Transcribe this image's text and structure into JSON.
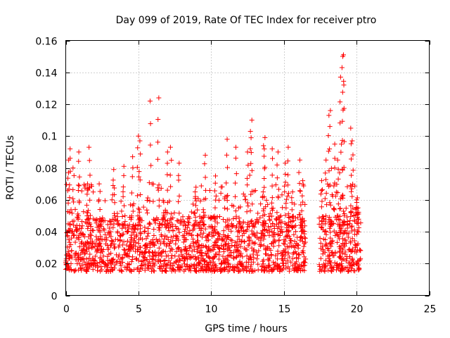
{
  "chart_data": {
    "type": "scatter",
    "title": "Day 099 of 2019, Rate Of TEC Index for receiver ptro",
    "xlabel": "GPS time / hours",
    "ylabel": "ROTI / TECUs",
    "xlim": [
      0,
      25
    ],
    "ylim": [
      0,
      0.16
    ],
    "x_ticks": [
      0,
      5,
      10,
      15,
      20,
      25
    ],
    "x_tick_labels": [
      "0",
      "5",
      "10",
      "15",
      "20",
      "25"
    ],
    "y_ticks": [
      0,
      0.02,
      0.04,
      0.06,
      0.08,
      0.1,
      0.12,
      0.14,
      0.16
    ],
    "y_tick_labels": [
      "0",
      "0.02",
      "0.04",
      "0.06",
      "0.08",
      "0.1",
      "0.12",
      "0.14",
      "0.16"
    ],
    "grid": true,
    "marker": "+",
    "series_color": "#ff0000",
    "series": [
      {
        "name": "ROTI",
        "data_segments": [
          {
            "x_start": 0.0,
            "x_end": 16.5,
            "typical_min": 0.015,
            "typical_max": 0.05
          },
          {
            "x_start": 17.4,
            "x_end": 20.3,
            "typical_min": 0.015,
            "typical_max": 0.05
          }
        ],
        "notable_points": [
          {
            "x": 0.2,
            "y": 0.085
          },
          {
            "x": 0.3,
            "y": 0.092
          },
          {
            "x": 0.5,
            "y": 0.08
          },
          {
            "x": 0.9,
            "y": 0.09
          },
          {
            "x": 1.5,
            "y": 0.07
          },
          {
            "x": 1.6,
            "y": 0.093
          },
          {
            "x": 2.3,
            "y": 0.07
          },
          {
            "x": 3.3,
            "y": 0.079
          },
          {
            "x": 4.0,
            "y": 0.081
          },
          {
            "x": 4.6,
            "y": 0.087
          },
          {
            "x": 5.0,
            "y": 0.1
          },
          {
            "x": 5.1,
            "y": 0.097
          },
          {
            "x": 5.8,
            "y": 0.122
          },
          {
            "x": 6.4,
            "y": 0.124
          },
          {
            "x": 7.0,
            "y": 0.09
          },
          {
            "x": 7.2,
            "y": 0.093
          },
          {
            "x": 7.8,
            "y": 0.083
          },
          {
            "x": 8.9,
            "y": 0.065
          },
          {
            "x": 9.6,
            "y": 0.088
          },
          {
            "x": 10.3,
            "y": 0.075
          },
          {
            "x": 11.1,
            "y": 0.098
          },
          {
            "x": 11.7,
            "y": 0.093
          },
          {
            "x": 12.5,
            "y": 0.09
          },
          {
            "x": 12.7,
            "y": 0.103
          },
          {
            "x": 12.8,
            "y": 0.11
          },
          {
            "x": 13.6,
            "y": 0.094
          },
          {
            "x": 13.7,
            "y": 0.099
          },
          {
            "x": 14.2,
            "y": 0.092
          },
          {
            "x": 14.6,
            "y": 0.09
          },
          {
            "x": 15.1,
            "y": 0.083
          },
          {
            "x": 15.3,
            "y": 0.093
          },
          {
            "x": 15.6,
            "y": 0.065
          },
          {
            "x": 16.1,
            "y": 0.085
          },
          {
            "x": 16.3,
            "y": 0.072
          },
          {
            "x": 17.6,
            "y": 0.072
          },
          {
            "x": 17.9,
            "y": 0.085
          },
          {
            "x": 18.1,
            "y": 0.113
          },
          {
            "x": 18.2,
            "y": 0.116
          },
          {
            "x": 18.5,
            "y": 0.095
          },
          {
            "x": 18.7,
            "y": 0.085
          },
          {
            "x": 18.9,
            "y": 0.137
          },
          {
            "x": 19.0,
            "y": 0.143
          },
          {
            "x": 19.05,
            "y": 0.15
          },
          {
            "x": 19.1,
            "y": 0.151
          },
          {
            "x": 19.6,
            "y": 0.105
          },
          {
            "x": 19.7,
            "y": 0.097
          },
          {
            "x": 20.0,
            "y": 0.06
          },
          {
            "x": 20.1,
            "y": 0.055
          }
        ]
      }
    ]
  }
}
